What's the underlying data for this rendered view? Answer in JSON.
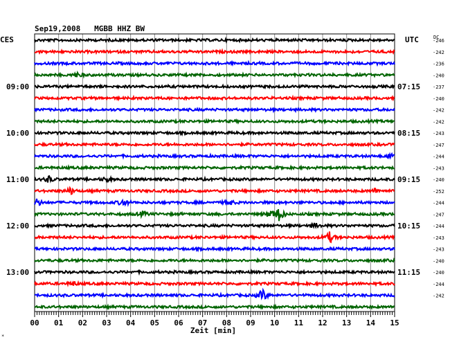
{
  "chart_data": {
    "type": "line",
    "title": "Sep19,2008   MGBB HHZ BW",
    "left_label": "CES",
    "right_label": "UTC",
    "dc_label": "DC",
    "xlabel": "Zeit [min]",
    "x_ticks": [
      "00",
      "01",
      "02",
      "03",
      "04",
      "05",
      "06",
      "07",
      "08",
      "09",
      "10",
      "11",
      "12",
      "13",
      "14",
      "15"
    ],
    "xlim": [
      0,
      15
    ],
    "line_colors": [
      "#000000",
      "#ff0000",
      "#0000ff",
      "#006400"
    ],
    "hour_labels_left": [
      {
        "row": 4,
        "text": "09:00"
      },
      {
        "row": 8,
        "text": "10:00"
      },
      {
        "row": 12,
        "text": "11:00"
      },
      {
        "row": 16,
        "text": "12:00"
      },
      {
        "row": 20,
        "text": "13:00"
      }
    ],
    "hour_labels_right": [
      {
        "row": 4,
        "text": "07:15"
      },
      {
        "row": 8,
        "text": "08:15"
      },
      {
        "row": 12,
        "text": "09:15"
      },
      {
        "row": 16,
        "text": "10:15"
      },
      {
        "row": 20,
        "text": "11:15"
      }
    ],
    "dc_values": [
      "-246",
      "-242",
      "-236",
      "-240",
      "-237",
      "-240",
      "-242",
      "-242",
      "-243",
      "-247",
      "-244",
      "-243",
      "-240",
      "-252",
      "-244",
      "-247",
      "-244",
      "-243",
      "-243",
      "-240",
      "-240",
      "-244",
      "-242"
    ],
    "traces": [
      {
        "events": []
      },
      {
        "events": []
      },
      {
        "events": []
      },
      {
        "events": [
          {
            "minute": 1.8,
            "amp": 1.6
          }
        ]
      },
      {
        "events": []
      },
      {
        "events": []
      },
      {
        "events": []
      },
      {
        "events": []
      },
      {
        "events": []
      },
      {
        "events": []
      },
      {
        "events": [
          {
            "minute": 14.8,
            "amp": 1.5
          }
        ]
      },
      {
        "events": []
      },
      {
        "events": [
          {
            "minute": 0.6,
            "amp": 2.0
          },
          {
            "minute": 3.0,
            "amp": 1.4
          }
        ]
      },
      {
        "events": [
          {
            "minute": 1.5,
            "amp": 2.2
          },
          {
            "minute": 14.2,
            "amp": 1.3
          }
        ]
      },
      {
        "events": [
          {
            "minute": 0.1,
            "amp": 2.5
          },
          {
            "minute": 3.7,
            "amp": 2.5
          },
          {
            "minute": 8.1,
            "amp": 1.8
          }
        ]
      },
      {
        "events": [
          {
            "minute": 4.5,
            "amp": 1.5
          },
          {
            "minute": 10.2,
            "amp": 5.0
          },
          {
            "minute": 9.8,
            "amp": 2.5
          }
        ]
      },
      {
        "events": [
          {
            "minute": 11.7,
            "amp": 1.5
          }
        ]
      },
      {
        "events": [
          {
            "minute": 12.3,
            "amp": 3.5
          }
        ]
      },
      {
        "events": []
      },
      {
        "events": []
      },
      {
        "events": []
      },
      {
        "events": [
          {
            "minute": 1.6,
            "amp": 1.3
          }
        ]
      },
      {
        "events": [
          {
            "minute": 9.5,
            "amp": 4.0
          }
        ]
      },
      {
        "events": []
      }
    ]
  }
}
